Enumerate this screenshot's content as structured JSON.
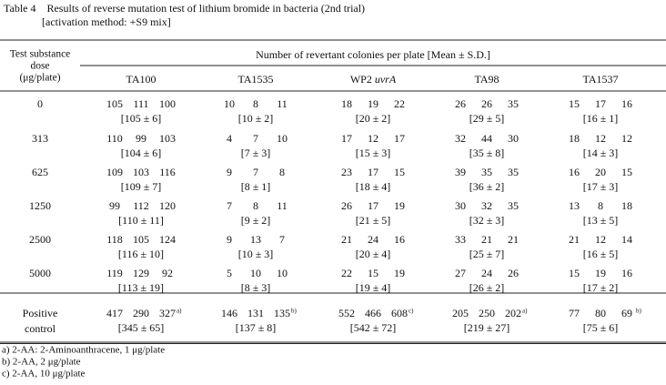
{
  "title": "Table 4　Results of reverse mutation test of lithium bromide in bacteria (2nd trial)",
  "subtitle": "[activation method: +S9 mix]",
  "table": {
    "header": {
      "dose": [
        "Test substance",
        "dose",
        "(μg/plate)"
      ],
      "group": "Number of revertant colonies per plate [Mean ± S.D.]",
      "strains": [
        {
          "name": "TA100"
        },
        {
          "name": "TA1535"
        },
        {
          "name": "WP2",
          "italic": "uvrA"
        },
        {
          "name": "TA98"
        },
        {
          "name": "TA1537"
        }
      ]
    },
    "rows": [
      {
        "dose": [
          "0"
        ],
        "cells": [
          {
            "counts": [
              "105",
              "111",
              "100"
            ],
            "mean": "[105 ± 6]"
          },
          {
            "counts": [
              "10",
              "8",
              "11"
            ],
            "mean": "[10 ± 2]"
          },
          {
            "counts": [
              "18",
              "19",
              "22"
            ],
            "mean": "[20 ± 2]"
          },
          {
            "counts": [
              "26",
              "26",
              "35"
            ],
            "mean": "[29 ± 5]"
          },
          {
            "counts": [
              "15",
              "17",
              "16"
            ],
            "mean": "[16 ± 1]"
          }
        ]
      },
      {
        "dose": [
          "313"
        ],
        "cells": [
          {
            "counts": [
              "110",
              "99",
              "103"
            ],
            "mean": "[104 ± 6]"
          },
          {
            "counts": [
              "4",
              "7",
              "10"
            ],
            "mean": "[7 ± 3]"
          },
          {
            "counts": [
              "17",
              "12",
              "17"
            ],
            "mean": "[15 ± 3]"
          },
          {
            "counts": [
              "32",
              "44",
              "30"
            ],
            "mean": "[35 ± 8]"
          },
          {
            "counts": [
              "18",
              "12",
              "12"
            ],
            "mean": "[14 ± 3]"
          }
        ]
      },
      {
        "dose": [
          "625"
        ],
        "cells": [
          {
            "counts": [
              "109",
              "103",
              "116"
            ],
            "mean": "[109 ± 7]"
          },
          {
            "counts": [
              "9",
              "7",
              "8"
            ],
            "mean": "[8 ± 1]"
          },
          {
            "counts": [
              "23",
              "17",
              "15"
            ],
            "mean": "[18 ± 4]"
          },
          {
            "counts": [
              "39",
              "35",
              "35"
            ],
            "mean": "[36 ± 2]"
          },
          {
            "counts": [
              "16",
              "20",
              "15"
            ],
            "mean": "[17 ± 3]"
          }
        ]
      },
      {
        "dose": [
          "1250"
        ],
        "cells": [
          {
            "counts": [
              "99",
              "112",
              "120"
            ],
            "mean": "[110 ± 11]"
          },
          {
            "counts": [
              "7",
              "8",
              "11"
            ],
            "mean": "[9 ± 2]"
          },
          {
            "counts": [
              "26",
              "17",
              "19"
            ],
            "mean": "[21 ± 5]"
          },
          {
            "counts": [
              "30",
              "32",
              "35"
            ],
            "mean": "[32 ± 3]"
          },
          {
            "counts": [
              "13",
              "8",
              "18"
            ],
            "mean": "[13 ± 5]"
          }
        ]
      },
      {
        "dose": [
          "2500"
        ],
        "cells": [
          {
            "counts": [
              "118",
              "105",
              "124"
            ],
            "mean": "[116 ± 10]"
          },
          {
            "counts": [
              "9",
              "13",
              "7"
            ],
            "mean": "[10 ± 3]"
          },
          {
            "counts": [
              "21",
              "24",
              "16"
            ],
            "mean": "[20 ± 4]"
          },
          {
            "counts": [
              "33",
              "21",
              "21"
            ],
            "mean": "[25 ± 7]"
          },
          {
            "counts": [
              "21",
              "12",
              "14"
            ],
            "mean": "[16 ± 5]"
          }
        ]
      },
      {
        "dose": [
          "5000"
        ],
        "cells": [
          {
            "counts": [
              "119",
              "129",
              "92"
            ],
            "mean": "[113 ± 19]"
          },
          {
            "counts": [
              "5",
              "10",
              "10"
            ],
            "mean": "[8 ± 3]"
          },
          {
            "counts": [
              "22",
              "15",
              "19"
            ],
            "mean": "[19 ± 4]"
          },
          {
            "counts": [
              "27",
              "24",
              "26"
            ],
            "mean": "[26 ± 2]"
          },
          {
            "counts": [
              "15",
              "19",
              "16"
            ],
            "mean": "[17 ± 2]"
          }
        ]
      },
      {
        "dose": [
          "Positive",
          "control"
        ],
        "cells": [
          {
            "counts": [
              "417",
              "290",
              "327"
            ],
            "note": "a)",
            "mean": "[345 ± 65]"
          },
          {
            "counts": [
              "146",
              "131",
              "135"
            ],
            "note": "b)",
            "mean": "[137 ± 8]"
          },
          {
            "counts": [
              "552",
              "466",
              "608"
            ],
            "note": "c)",
            "mean": "[542 ± 72]"
          },
          {
            "counts": [
              "205",
              "250",
              "202"
            ],
            "note": "a)",
            "mean": "[219 ± 27]"
          },
          {
            "counts": [
              "77",
              "80",
              "69"
            ],
            "note": "b)",
            "mean": "[75 ± 6]"
          }
        ]
      }
    ]
  },
  "footnotes": [
    "a) 2-AA: 2-Aminoanthracene, 1 μg/plate",
    "b) 2-AA, 2 μg/plate",
    "c) 2-AA, 10 μg/plate"
  ]
}
